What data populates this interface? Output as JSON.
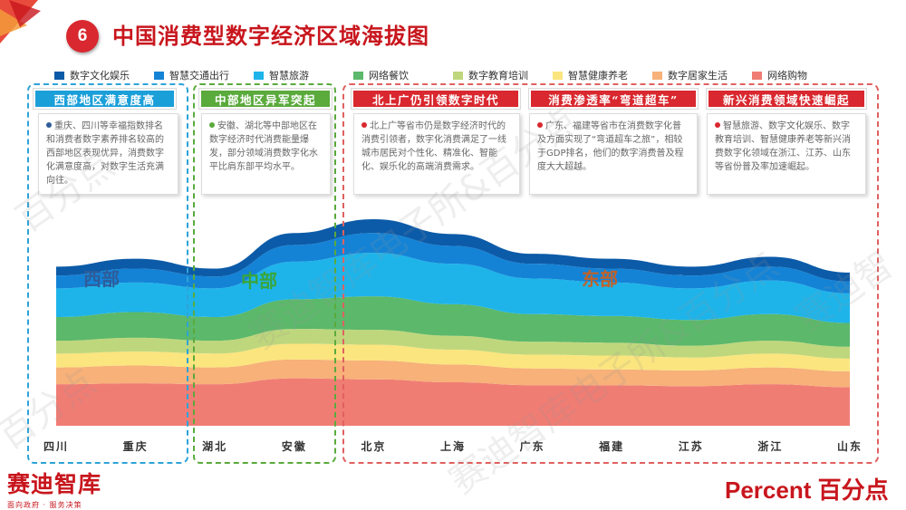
{
  "badge": "6",
  "title": "中国消费型数字经济区域海拔图",
  "colors": {
    "accent": "#c8161d",
    "west_box": "#2ea3d8",
    "central_box": "#5aaa3c",
    "east_box": "#e06060",
    "west_label": "#2e5d9a",
    "central_label": "#3aa53a",
    "east_label": "#c0622a"
  },
  "chart_data": {
    "type": "area",
    "stacked": true,
    "categories": [
      "四川",
      "重庆",
      "湖北",
      "安徽",
      "北京",
      "上海",
      "广东",
      "福建",
      "江苏",
      "浙江",
      "山东"
    ],
    "series": [
      {
        "name": "网络购物",
        "color": "#f07d74",
        "values": [
          0.42,
          0.43,
          0.42,
          0.48,
          0.47,
          0.44,
          0.41,
          0.41,
          0.4,
          0.42,
          0.39
        ]
      },
      {
        "name": "数字居家生活",
        "color": "#f7b179",
        "values": [
          0.17,
          0.18,
          0.17,
          0.19,
          0.19,
          0.18,
          0.17,
          0.16,
          0.16,
          0.17,
          0.16
        ]
      },
      {
        "name": "智慧健康养老",
        "color": "#fbe57e",
        "values": [
          0.14,
          0.14,
          0.14,
          0.16,
          0.16,
          0.15,
          0.14,
          0.14,
          0.13,
          0.14,
          0.13
        ]
      },
      {
        "name": "数字教育培训",
        "color": "#bfd77c",
        "values": [
          0.13,
          0.14,
          0.13,
          0.15,
          0.15,
          0.14,
          0.13,
          0.13,
          0.12,
          0.13,
          0.12
        ]
      },
      {
        "name": "网络餐饮",
        "color": "#5cb86a",
        "values": [
          0.24,
          0.26,
          0.24,
          0.3,
          0.34,
          0.32,
          0.28,
          0.27,
          0.26,
          0.27,
          0.24
        ]
      },
      {
        "name": "智慧旅游",
        "color": "#1eb4ea",
        "values": [
          0.29,
          0.3,
          0.29,
          0.38,
          0.44,
          0.41,
          0.36,
          0.34,
          0.32,
          0.34,
          0.3
        ]
      },
      {
        "name": "智慧交通出行",
        "color": "#1483d6",
        "values": [
          0.13,
          0.14,
          0.12,
          0.17,
          0.2,
          0.18,
          0.15,
          0.14,
          0.13,
          0.14,
          0.12
        ]
      },
      {
        "name": "数字文化娱乐",
        "color": "#0c5ba8",
        "values": [
          0.09,
          0.1,
          0.08,
          0.12,
          0.14,
          0.12,
          0.1,
          0.1,
          0.09,
          0.1,
          0.09
        ]
      }
    ],
    "legend_order": [
      "数字文化娱乐",
      "智慧交通出行",
      "智慧旅游",
      "网络餐饮",
      "数字教育培训",
      "智慧健康养老",
      "数字居家生活",
      "网络购物"
    ],
    "legend_position": "top",
    "ylim": [
      0,
      2.2
    ],
    "grid": false,
    "region_labels": {
      "west": "西部",
      "central": "中部",
      "east": "东部"
    }
  },
  "regions": {
    "west": {
      "header": "西部地区满意度高",
      "note": "重庆、四川等幸福指数排名和消费者数字素养排名较高的西部地区表现优异，消费数字化满意度高，对数字生活充满向往。"
    },
    "central": {
      "header": "中部地区异军突起",
      "note": "安徽、湖北等中部地区在数字经济时代消费能量爆发，部分领域消费数字化水平比肩东部平均水平。"
    },
    "east": {
      "notes": [
        {
          "header": "北上广仍引领数字时代",
          "note": "北上广等省市仍是数字经济时代的消费引领者，数字化消费满足了一线城市居民对个性化、精准化、智能化、娱乐化的高端消费需求。"
        },
        {
          "header": "消费渗透率“弯道超车”",
          "note": "广东、福建等省市在消费数字化普及方面实现了“弯道超车之旅”，相较于GDP排名，他们的数字消费普及程度大大超越。"
        },
        {
          "header": "新兴消费领域快速崛起",
          "note": "智慧旅游、数字文化娱乐、数字教育培训、智慧健康养老等新兴消费数字化领域在浙江、江苏、山东等省份普及率加速崛起。"
        }
      ]
    }
  },
  "logos": {
    "left_main": "赛迪智库",
    "left_sub": "面向政府 · 服务决策",
    "right": "Percent 百分点"
  },
  "watermarks": [
    "赛迪智库电子所&百分点",
    "赛迪智库电子所&百分点",
    "百分点",
    "百分点",
    "赛迪智"
  ]
}
